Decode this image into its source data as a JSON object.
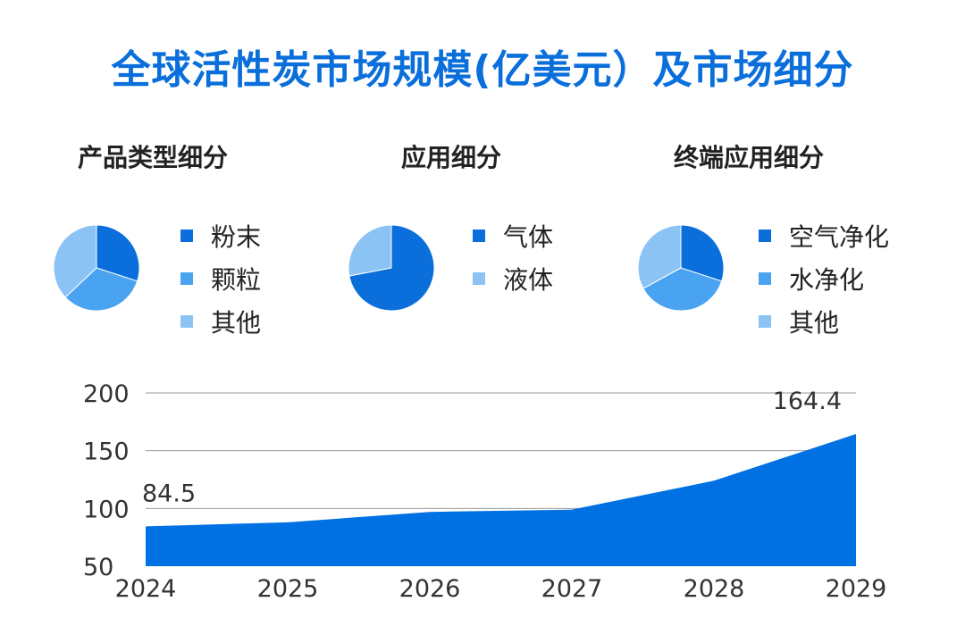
{
  "title": "全球活性炭市场规模(亿美元）及市场细分",
  "colors": {
    "primary": "#0a6fdb",
    "mid": "#4aa3f0",
    "light": "#8cc3f5",
    "accent": "#0071e3"
  },
  "pies": [
    {
      "title": "产品类型细分",
      "slices": [
        {
          "label": "粉末",
          "value": 30,
          "color": "#0a6fdb"
        },
        {
          "label": "颗粒",
          "value": 33,
          "color": "#4aa3f0"
        },
        {
          "label": "其他",
          "value": 37,
          "color": "#8cc3f5"
        }
      ]
    },
    {
      "title": "应用细分",
      "slices": [
        {
          "label": "气体",
          "value": 72,
          "color": "#0a6fdb"
        },
        {
          "label": "液体",
          "value": 28,
          "color": "#8cc3f5"
        }
      ]
    },
    {
      "title": "终端应用细分",
      "slices": [
        {
          "label": "空气净化",
          "value": 30,
          "color": "#0a6fdb"
        },
        {
          "label": "水净化",
          "value": 37,
          "color": "#4aa3f0"
        },
        {
          "label": "其他",
          "value": 33,
          "color": "#8cc3f5"
        }
      ]
    }
  ],
  "chart_data": {
    "type": "area",
    "title": "全球活性炭市场规模(亿美元）",
    "x": [
      "2024",
      "2025",
      "2026",
      "2027",
      "2028",
      "2029"
    ],
    "values": [
      84.5,
      88,
      97,
      99,
      124,
      164.4
    ],
    "ylim": [
      50,
      200
    ],
    "yticks": [
      50,
      100,
      150,
      200
    ],
    "data_labels": [
      {
        "index": 0,
        "text": "84.5"
      },
      {
        "index": 5,
        "text": "164.4"
      }
    ],
    "grid": true,
    "color": "#0071e3"
  }
}
